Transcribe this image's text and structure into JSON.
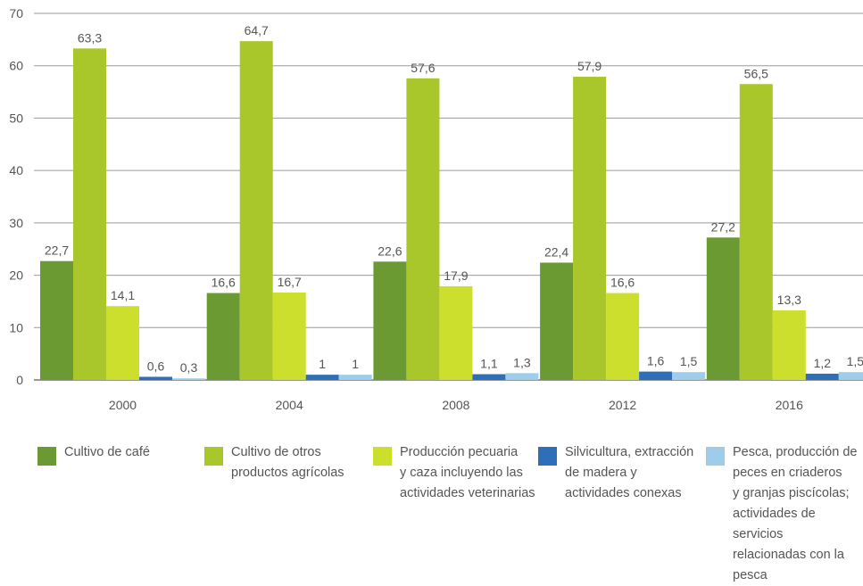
{
  "chart_data": {
    "type": "bar",
    "categories": [
      "2000",
      "2004",
      "2008",
      "2012",
      "2016"
    ],
    "ylim": [
      0,
      70
    ],
    "yticks": [
      0,
      10,
      20,
      30,
      40,
      50,
      60,
      70
    ],
    "grid": true,
    "legend_position": "bottom",
    "series": [
      {
        "name": "Cultivo de café",
        "color": "#6a9a31",
        "values": [
          22.7,
          16.6,
          22.6,
          22.4,
          27.2
        ],
        "labels": [
          "22,7",
          "16,6",
          "22,6",
          "22,4",
          "27,2"
        ]
      },
      {
        "name": "Cultivo de otros productos agrícolas",
        "color": "#a9c62a",
        "values": [
          63.3,
          64.7,
          57.6,
          57.9,
          56.5
        ],
        "labels": [
          "63,3",
          "64,7",
          "57,6",
          "57,9",
          "56,5"
        ]
      },
      {
        "name": "Producción pecuaria y caza incluyendo las actividades veterinarias",
        "color": "#ccdf2c",
        "values": [
          14.1,
          16.7,
          17.9,
          16.6,
          13.3
        ],
        "labels": [
          "14,1",
          "16,7",
          "17,9",
          "16,6",
          "13,3"
        ]
      },
      {
        "name": "Silvicultura, extracción de madera y actividades conexas",
        "color": "#2f6fb8",
        "values": [
          0.6,
          1,
          1.1,
          1.6,
          1.2
        ],
        "labels": [
          "0,6",
          "1",
          "1,1",
          "1,6",
          "1,2"
        ]
      },
      {
        "name": "Pesca, producción de peces en criaderos y granjas piscícolas; actividades de servicios relacionadas con la pesca",
        "color": "#9dcde9",
        "values": [
          0.3,
          1,
          1.3,
          1.5,
          1.5
        ],
        "labels": [
          "0,3",
          "1",
          "1,3",
          "1,5",
          "1,5"
        ]
      }
    ]
  },
  "legend": [
    {
      "lines": [
        "Cultivo de café"
      ],
      "color": "#6a9a31"
    },
    {
      "lines": [
        "Cultivo de otros",
        "productos agrícolas"
      ],
      "color": "#a9c62a"
    },
    {
      "lines": [
        "Producción pecuaria",
        "y caza incluyendo las",
        "actividades veterinarias"
      ],
      "color": "#ccdf2c"
    },
    {
      "lines": [
        "Silvicultura, extracción",
        "de madera y",
        "actividades conexas"
      ],
      "color": "#2f6fb8"
    },
    {
      "lines": [
        "Pesca, producción de",
        "peces en criaderos",
        "y granjas piscícolas;",
        "actividades de servicios",
        "relacionadas con la",
        "pesca"
      ],
      "color": "#9dcde9"
    }
  ]
}
